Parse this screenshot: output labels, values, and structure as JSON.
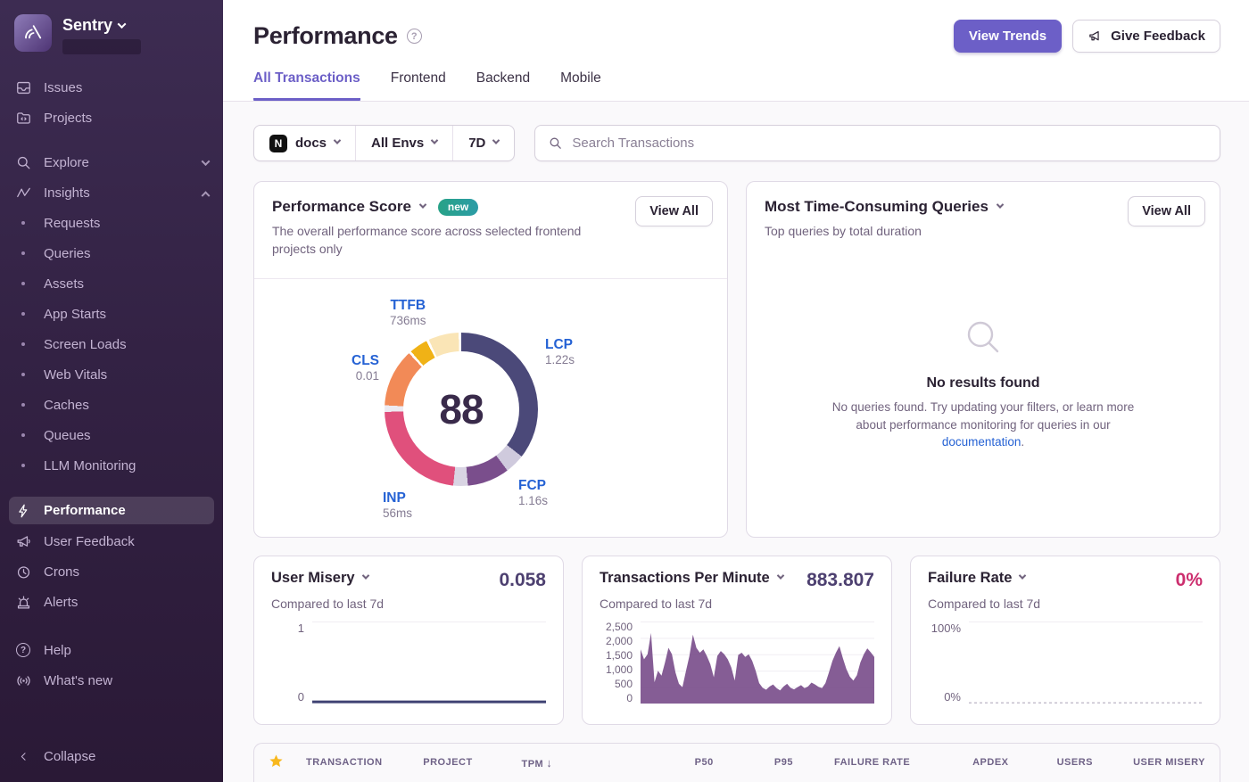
{
  "sidebar": {
    "brand": "Sentry",
    "items_top": [
      "Issues",
      "Projects"
    ],
    "explore": "Explore",
    "insights": "Insights",
    "insights_children": [
      "Requests",
      "Queries",
      "Assets",
      "App Starts",
      "Screen Loads",
      "Web Vitals",
      "Caches",
      "Queues",
      "LLM Monitoring"
    ],
    "performance": "Performance",
    "items_bottom": [
      "User Feedback",
      "Crons",
      "Alerts"
    ],
    "items_footer": [
      "Help",
      "What's new"
    ],
    "collapse": "Collapse"
  },
  "icons": {
    "question_glyph": "?",
    "project_icon_letter": "N"
  },
  "header": {
    "title": "Performance",
    "view_trends": "View Trends",
    "give_feedback": "Give Feedback"
  },
  "tabs": [
    "All Transactions",
    "Frontend",
    "Backend",
    "Mobile"
  ],
  "filters": {
    "project": "docs",
    "environment": "All Envs",
    "period": "7D",
    "search_placeholder": "Search Transactions"
  },
  "score_card": {
    "title": "Performance Score",
    "badge": "new",
    "description": "The overall performance score across selected frontend projects only",
    "view_all": "View All"
  },
  "queries_card": {
    "title": "Most Time-Consuming Queries",
    "subtitle": "Top queries by total duration",
    "view_all": "View All",
    "empty_title": "No results found",
    "empty_body": "No queries found. Try updating your filters, or learn more about performance monitoring for queries in our ",
    "empty_link": "documentation",
    "empty_end": "."
  },
  "mini_cards": {
    "user_misery": {
      "title": "User Misery",
      "compare": "Compared to last 7d",
      "value": "0.058",
      "y_max": "1",
      "y_min": "0"
    },
    "tpm": {
      "title": "Transactions Per Minute",
      "compare": "Compared to last 7d",
      "value": "883.807",
      "yticks": [
        "2,500",
        "2,000",
        "1,500",
        "1,000",
        "500",
        "0"
      ]
    },
    "failure_rate": {
      "title": "Failure Rate",
      "compare": "Compared to last 7d",
      "value": "0%",
      "y_max": "100%",
      "y_min": "0%"
    }
  },
  "table": {
    "columns": [
      "TRANSACTION",
      "PROJECT",
      "TPM",
      "P50",
      "P95",
      "FAILURE RATE",
      "APDEX",
      "USERS",
      "USER MISERY"
    ],
    "sort_arrow": "↓",
    "sorted_column": "TPM"
  },
  "chart_data": [
    {
      "type": "pie",
      "subtype": "donut",
      "title": "Performance Score",
      "center_value": "88",
      "vitals": [
        {
          "label": "TTFB",
          "value": "736ms"
        },
        {
          "label": "LCP",
          "value": "1.22s"
        },
        {
          "label": "FCP",
          "value": "1.16s"
        },
        {
          "label": "INP",
          "value": "56ms"
        },
        {
          "label": "CLS",
          "value": "0.01"
        }
      ],
      "segments_deg": [
        {
          "name": "lcp",
          "color": "#4B4979",
          "from": 0,
          "to": 128
        },
        {
          "name": "divider",
          "color": "#CFCADD",
          "from": 128,
          "to": 143
        },
        {
          "name": "fcp",
          "color": "#7A4E8C",
          "from": 143,
          "to": 175
        },
        {
          "name": "divider2",
          "color": "#D9D4E3",
          "from": 175,
          "to": 186
        },
        {
          "name": "inp",
          "color": "#E0507C",
          "from": 186,
          "to": 268
        },
        {
          "name": "gap",
          "color": "#EDEAF1",
          "from": 268,
          "to": 273
        },
        {
          "name": "cls",
          "color": "#F28A57",
          "from": 273,
          "to": 317
        },
        {
          "name": "gap2",
          "color": "#FFFFFF",
          "from": 317,
          "to": 319
        },
        {
          "name": "ttfb",
          "color": "#F0B216",
          "from": 319,
          "to": 333
        },
        {
          "name": "gap3",
          "color": "#FFFFFF",
          "from": 333,
          "to": 335
        },
        {
          "name": "ttfb-light",
          "color": "#FAE5B6",
          "from": 335,
          "to": 358
        },
        {
          "name": "gap4",
          "color": "#FFFFFF",
          "from": 358,
          "to": 360
        }
      ]
    },
    {
      "type": "line",
      "title": "User Misery",
      "current_value": 0.058,
      "ylim": [
        0,
        1
      ],
      "line_color": "#3F4273",
      "values": [
        0.02,
        0.02,
        0.02,
        0.02,
        0.02,
        0.02,
        0.02,
        0.02,
        0.02,
        0.02,
        0.02,
        0.02,
        0.02,
        0.02,
        0.02,
        0.02
      ]
    },
    {
      "type": "area",
      "title": "Transactions Per Minute",
      "current_value": 883.807,
      "ylim": [
        0,
        2500
      ],
      "fill_color": "#7B4F8C",
      "values": [
        1650,
        1350,
        1500,
        2150,
        650,
        1000,
        850,
        1250,
        1700,
        1500,
        950,
        600,
        500,
        980,
        1450,
        2100,
        1700,
        1550,
        1650,
        1450,
        1200,
        800,
        1450,
        1600,
        1500,
        1350,
        1100,
        700,
        1480,
        1550,
        1420,
        1500,
        1300,
        1000,
        620,
        480,
        420,
        520,
        580,
        470,
        400,
        520,
        600,
        480,
        430,
        500,
        560,
        470,
        520,
        640,
        580,
        510,
        470,
        620,
        950,
        1300,
        1550,
        1750,
        1380,
        1050,
        820,
        700,
        860,
        1250,
        1500,
        1680,
        1560,
        1420
      ]
    },
    {
      "type": "line",
      "title": "Failure Rate",
      "current_value": "0%",
      "ylim": [
        0,
        100
      ],
      "line_color": "#C6C0CE",
      "dashed": true,
      "values": [
        0,
        0,
        0,
        0,
        0,
        0,
        0,
        0
      ]
    }
  ]
}
